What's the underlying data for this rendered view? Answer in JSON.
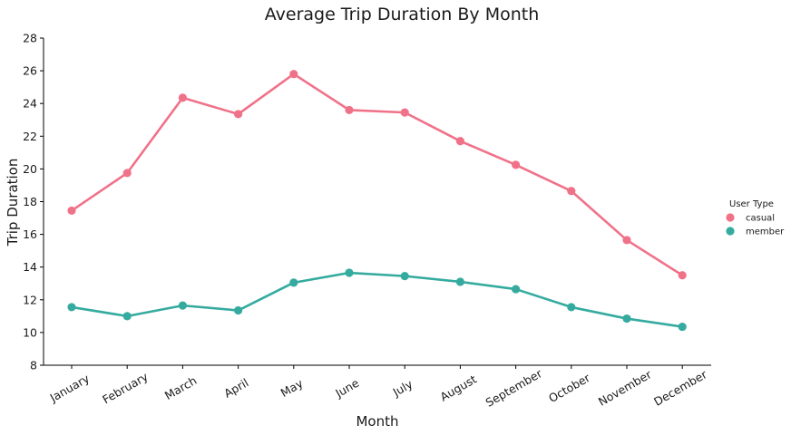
{
  "chart_data": {
    "type": "line",
    "title": "Average Trip Duration By Month",
    "xlabel": "Month",
    "ylabel": "Trip Duration",
    "categories": [
      "January",
      "February",
      "March",
      "April",
      "May",
      "June",
      "July",
      "August",
      "September",
      "October",
      "November",
      "December"
    ],
    "ylim": [
      8,
      28
    ],
    "yticks": [
      8,
      10,
      12,
      14,
      16,
      18,
      20,
      22,
      24,
      26,
      28
    ],
    "grid": false,
    "legend_title": "User Type",
    "legend_position": "right",
    "series": [
      {
        "name": "casual",
        "color": "#f07289",
        "values": [
          17.45,
          19.75,
          24.35,
          23.35,
          25.8,
          23.6,
          23.45,
          21.7,
          20.25,
          18.65,
          15.65,
          13.5
        ]
      },
      {
        "name": "member",
        "color": "#35ab9f",
        "values": [
          11.55,
          11.0,
          11.65,
          11.35,
          13.05,
          13.65,
          13.45,
          13.1,
          12.65,
          11.55,
          10.85,
          10.35
        ]
      }
    ]
  }
}
